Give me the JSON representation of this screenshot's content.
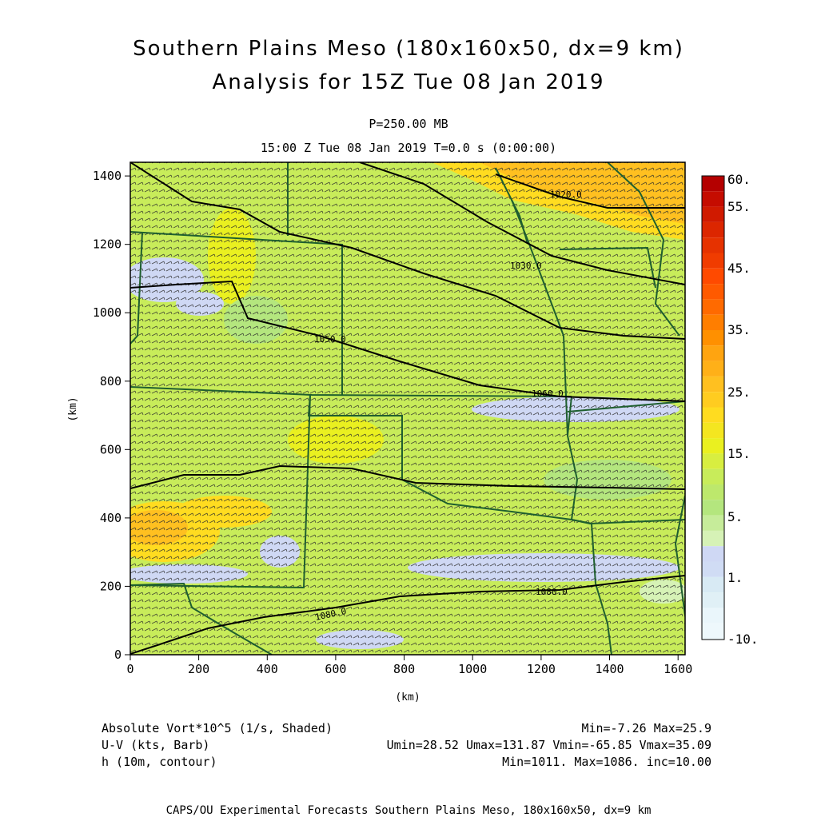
{
  "header": {
    "title_line1": "Southern Plains Meso (180x160x50, dx=9 km)",
    "title_line2": "Analysis for 15Z Tue 08 Jan 2019",
    "level": "P=250.00 MB",
    "time": "15:00 Z Tue 08 Jan 2019    T=0.0 s (0:00:00)"
  },
  "axes": {
    "xlabel": "(km)",
    "ylabel": "(km)",
    "x_ticks": [
      "0",
      "200",
      "400",
      "600",
      "800",
      "1000",
      "1200",
      "1400",
      "1600"
    ],
    "y_ticks": [
      "0",
      "200",
      "400",
      "600",
      "800",
      "1000",
      "1200",
      "1400"
    ],
    "x_range": [
      0,
      1620
    ],
    "y_range": [
      0,
      1440
    ]
  },
  "colorbar": {
    "labels": [
      "60.",
      "55.",
      "45.",
      "35.",
      "25.",
      "15.",
      "5.",
      "1.",
      "-10."
    ],
    "colors": [
      "#b40000",
      "#d01a00",
      "#e63200",
      "#ff4a00",
      "#ff6a00",
      "#ff9000",
      "#ffc020",
      "#ffdc20",
      "#eaf020",
      "#c8ec5a",
      "#b4e67e",
      "#d6f2b6",
      "#cfd8f4",
      "#d8eaf4",
      "#eaf6fb"
    ]
  },
  "contours": {
    "labels": [
      "1080.0",
      "1070.0",
      "1050.0",
      "1060.0",
      "1030.0",
      "1020.0"
    ]
  },
  "legend": {
    "left": [
      "Absolute Vort*10^5 (1/s, Shaded)",
      "U-V (kts, Barb)",
      "h (10m, contour)"
    ],
    "right": [
      "Min=-7.26 Max=25.9",
      "Umin=28.52 Umax=131.87 Vmin=-65.85 Vmax=35.09",
      "Min=1011. Max=1086. inc=10.00"
    ]
  },
  "footer": "CAPS/OU Experimental Forecasts  Southern Plains Meso, 180x160x50, dx=9 km"
}
